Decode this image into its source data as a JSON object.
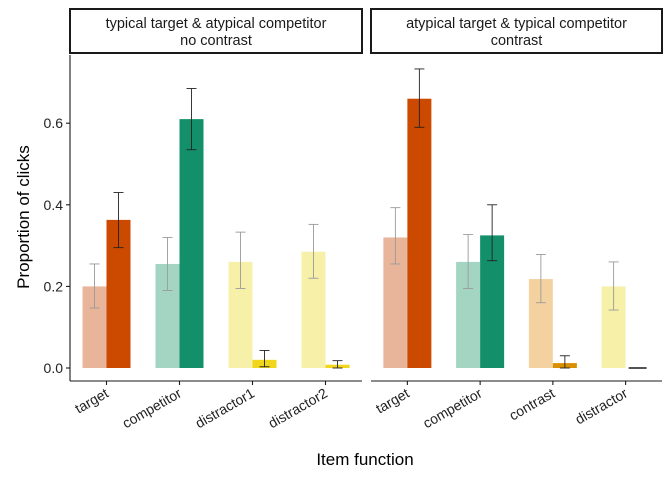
{
  "chart_data": {
    "type": "bar",
    "ylabel": "Proportion of clicks",
    "xlabel": "Item function",
    "ylim": [
      0,
      0.7
    ],
    "yticks": [
      "0.0",
      "0.2",
      "0.4",
      "0.6"
    ],
    "ytick_values": [
      0,
      0.2,
      0.4,
      0.6
    ],
    "grid": false,
    "legend": "none",
    "panels": [
      {
        "title_lines": [
          "typical target & atypical competitor",
          "no contrast"
        ],
        "categories": [
          "target",
          "competitor",
          "distractor1",
          "distractor2"
        ],
        "bars": [
          {
            "light": {
              "value": 0.2,
              "lo": 0.147,
              "hi": 0.255,
              "color": "#e8b59b"
            },
            "dark": {
              "value": 0.363,
              "lo": 0.295,
              "hi": 0.43,
              "color": "#cc4a00"
            }
          },
          {
            "light": {
              "value": 0.255,
              "lo": 0.19,
              "hi": 0.32,
              "color": "#a3d5c2"
            },
            "dark": {
              "value": 0.61,
              "lo": 0.535,
              "hi": 0.685,
              "color": "#13906a"
            }
          },
          {
            "light": {
              "value": 0.26,
              "lo": 0.195,
              "hi": 0.333,
              "color": "#f7f0a9"
            },
            "dark": {
              "value": 0.02,
              "lo": 0.003,
              "hi": 0.043,
              "color": "#f0d71c"
            }
          },
          {
            "light": {
              "value": 0.285,
              "lo": 0.22,
              "hi": 0.352,
              "color": "#f7f0a9"
            },
            "dark": {
              "value": 0.008,
              "lo": 0.0,
              "hi": 0.018,
              "color": "#f0d71c"
            }
          }
        ]
      },
      {
        "title_lines": [
          "atypical target & typical competitor",
          "contrast"
        ],
        "categories": [
          "target",
          "competitor",
          "contrast",
          "distractor"
        ],
        "bars": [
          {
            "light": {
              "value": 0.32,
              "lo": 0.255,
              "hi": 0.393,
              "color": "#e8b59b"
            },
            "dark": {
              "value": 0.66,
              "lo": 0.59,
              "hi": 0.733,
              "color": "#cc4a00"
            }
          },
          {
            "light": {
              "value": 0.26,
              "lo": 0.195,
              "hi": 0.327,
              "color": "#a3d5c2"
            },
            "dark": {
              "value": 0.325,
              "lo": 0.263,
              "hi": 0.4,
              "color": "#13906a"
            }
          },
          {
            "light": {
              "value": 0.218,
              "lo": 0.16,
              "hi": 0.278,
              "color": "#f4d2a0"
            },
            "dark": {
              "value": 0.012,
              "lo": 0.0,
              "hi": 0.03,
              "color": "#d98f00"
            }
          },
          {
            "light": {
              "value": 0.2,
              "lo": 0.142,
              "hi": 0.26,
              "color": "#f7f0a9"
            },
            "dark": {
              "value": 0.0,
              "lo": 0.0,
              "hi": 0.0,
              "color": "#1a1a1a"
            }
          }
        ]
      }
    ]
  }
}
